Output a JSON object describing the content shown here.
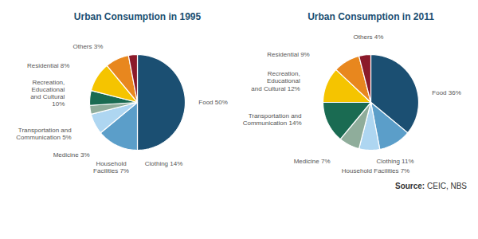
{
  "chart_data": [
    {
      "type": "pie",
      "title": "Urban Consumption in 1995",
      "categories": [
        "Food 50%",
        "Clothing 14%",
        "Household\nFacilities 7%",
        "Medicine 3%",
        "Transportation and\nCommunication 5%",
        "Recreation,\nEducational\nand Cultural\n10%",
        "Residential 8%",
        "Others 3%"
      ],
      "values": [
        50,
        14,
        7,
        3,
        5,
        10,
        8,
        3
      ],
      "colors": [
        "#1b4f72",
        "#5b9ec9",
        "#aed6f1",
        "#8fad9b",
        "#1a6b52",
        "#f5c400",
        "#e8871e",
        "#8b1a2a"
      ]
    },
    {
      "type": "pie",
      "title": "Urban Consumption in 2011",
      "categories": [
        "Food 36%",
        "Clothing 11%",
        "Household Facilities 7%",
        "Medicine 7%",
        "Transportation and\nCommunication 14%",
        "Recreation,\nEducational\nand Cultural 12%",
        "Residential 9%",
        "Others 4%"
      ],
      "values": [
        36,
        11,
        7,
        7,
        14,
        12,
        9,
        4
      ],
      "colors": [
        "#1b4f72",
        "#5b9ec9",
        "#aed6f1",
        "#8fad9b",
        "#1a6b52",
        "#f5c400",
        "#e8871e",
        "#8b1a2a"
      ],
      "annotations": [
        "Source:",
        "CEIC, NBS"
      ]
    }
  ]
}
